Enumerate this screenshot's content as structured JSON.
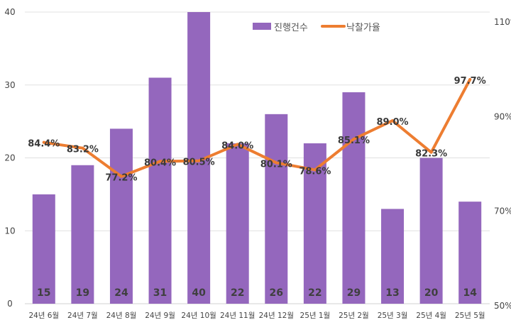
{
  "chart_data": {
    "type": "bar+line",
    "categories": [
      "24년 6월",
      "24년 7월",
      "24년 8월",
      "24년 9월",
      "24년 10월",
      "24년 11월",
      "24년 12월",
      "25년 1월",
      "25년 2월",
      "25년 3월",
      "25년 4월",
      "25년 5월"
    ],
    "series": [
      {
        "name": "진행건수",
        "type": "bar",
        "axis": "left",
        "color": "#9467bd",
        "values": [
          15,
          19,
          24,
          31,
          40,
          22,
          26,
          22,
          29,
          13,
          20,
          14
        ],
        "labels": [
          "15",
          "19",
          "24",
          "31",
          "40",
          "22",
          "26",
          "22",
          "29",
          "13",
          "20",
          "14"
        ]
      },
      {
        "name": "낙찰가율",
        "type": "line",
        "axis": "right",
        "color": "#ed7d31",
        "values": [
          84.4,
          83.2,
          77.2,
          80.4,
          80.5,
          84.0,
          80.1,
          78.6,
          85.1,
          89.0,
          82.3,
          97.7
        ],
        "labels": [
          "84.4%",
          "83.2%",
          "77.2%",
          "80.4%",
          "80.5%",
          "84.0%",
          "80.1%",
          "78.6%",
          "85.1%",
          "89.0%",
          "82.3%",
          "97.7%"
        ]
      }
    ],
    "left_axis": {
      "ylim": [
        0,
        40
      ],
      "ticks": [
        "0",
        "10",
        "20",
        "30",
        "40"
      ]
    },
    "right_axis": {
      "ylim": [
        50,
        110
      ],
      "ticks": [
        "50%",
        "70%",
        "90%",
        "110%"
      ]
    },
    "grid": true,
    "legend": "top-right"
  }
}
